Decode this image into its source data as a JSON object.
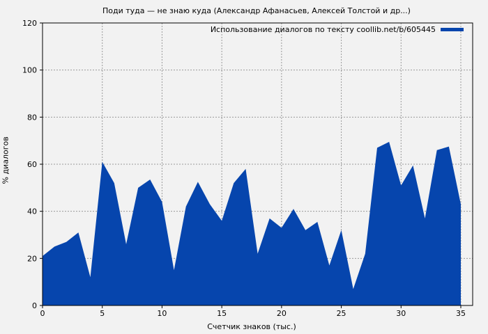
{
  "chart_data": {
    "type": "area",
    "title": "Поди туда — не знаю куда (Александр Афанасьев, Алексей Толстой и др...)",
    "xlabel": "Счетчик знаков (тыс.)",
    "ylabel": "% диалогов",
    "xlim": [
      0,
      35
    ],
    "ylim": [
      0,
      120
    ],
    "xticks": [
      0,
      5,
      10,
      15,
      20,
      25,
      30,
      35
    ],
    "yticks": [
      0,
      20,
      40,
      60,
      80,
      100,
      120
    ],
    "grid": true,
    "legend_position": "top-right",
    "series": [
      {
        "name": "Использование диалогов по тексту coollib.net/b/605445",
        "color": "#0645ad",
        "x": [
          0,
          1,
          2,
          3,
          4,
          5,
          6,
          7,
          8,
          9,
          10,
          11,
          12,
          13,
          14,
          15,
          16,
          17,
          18,
          19,
          20,
          21,
          22,
          23,
          24,
          25,
          26,
          27,
          28,
          29,
          30,
          31,
          32,
          33,
          34,
          35
        ],
        "values": [
          21,
          25,
          27,
          31,
          12,
          61,
          52,
          26,
          50,
          53.5,
          44,
          15,
          42,
          52.5,
          43,
          36,
          52,
          58,
          22,
          37,
          33,
          41,
          32,
          35.5,
          17,
          32,
          7,
          22,
          67,
          69.5,
          51,
          59.5,
          37,
          66,
          67.5,
          43
        ]
      }
    ]
  }
}
